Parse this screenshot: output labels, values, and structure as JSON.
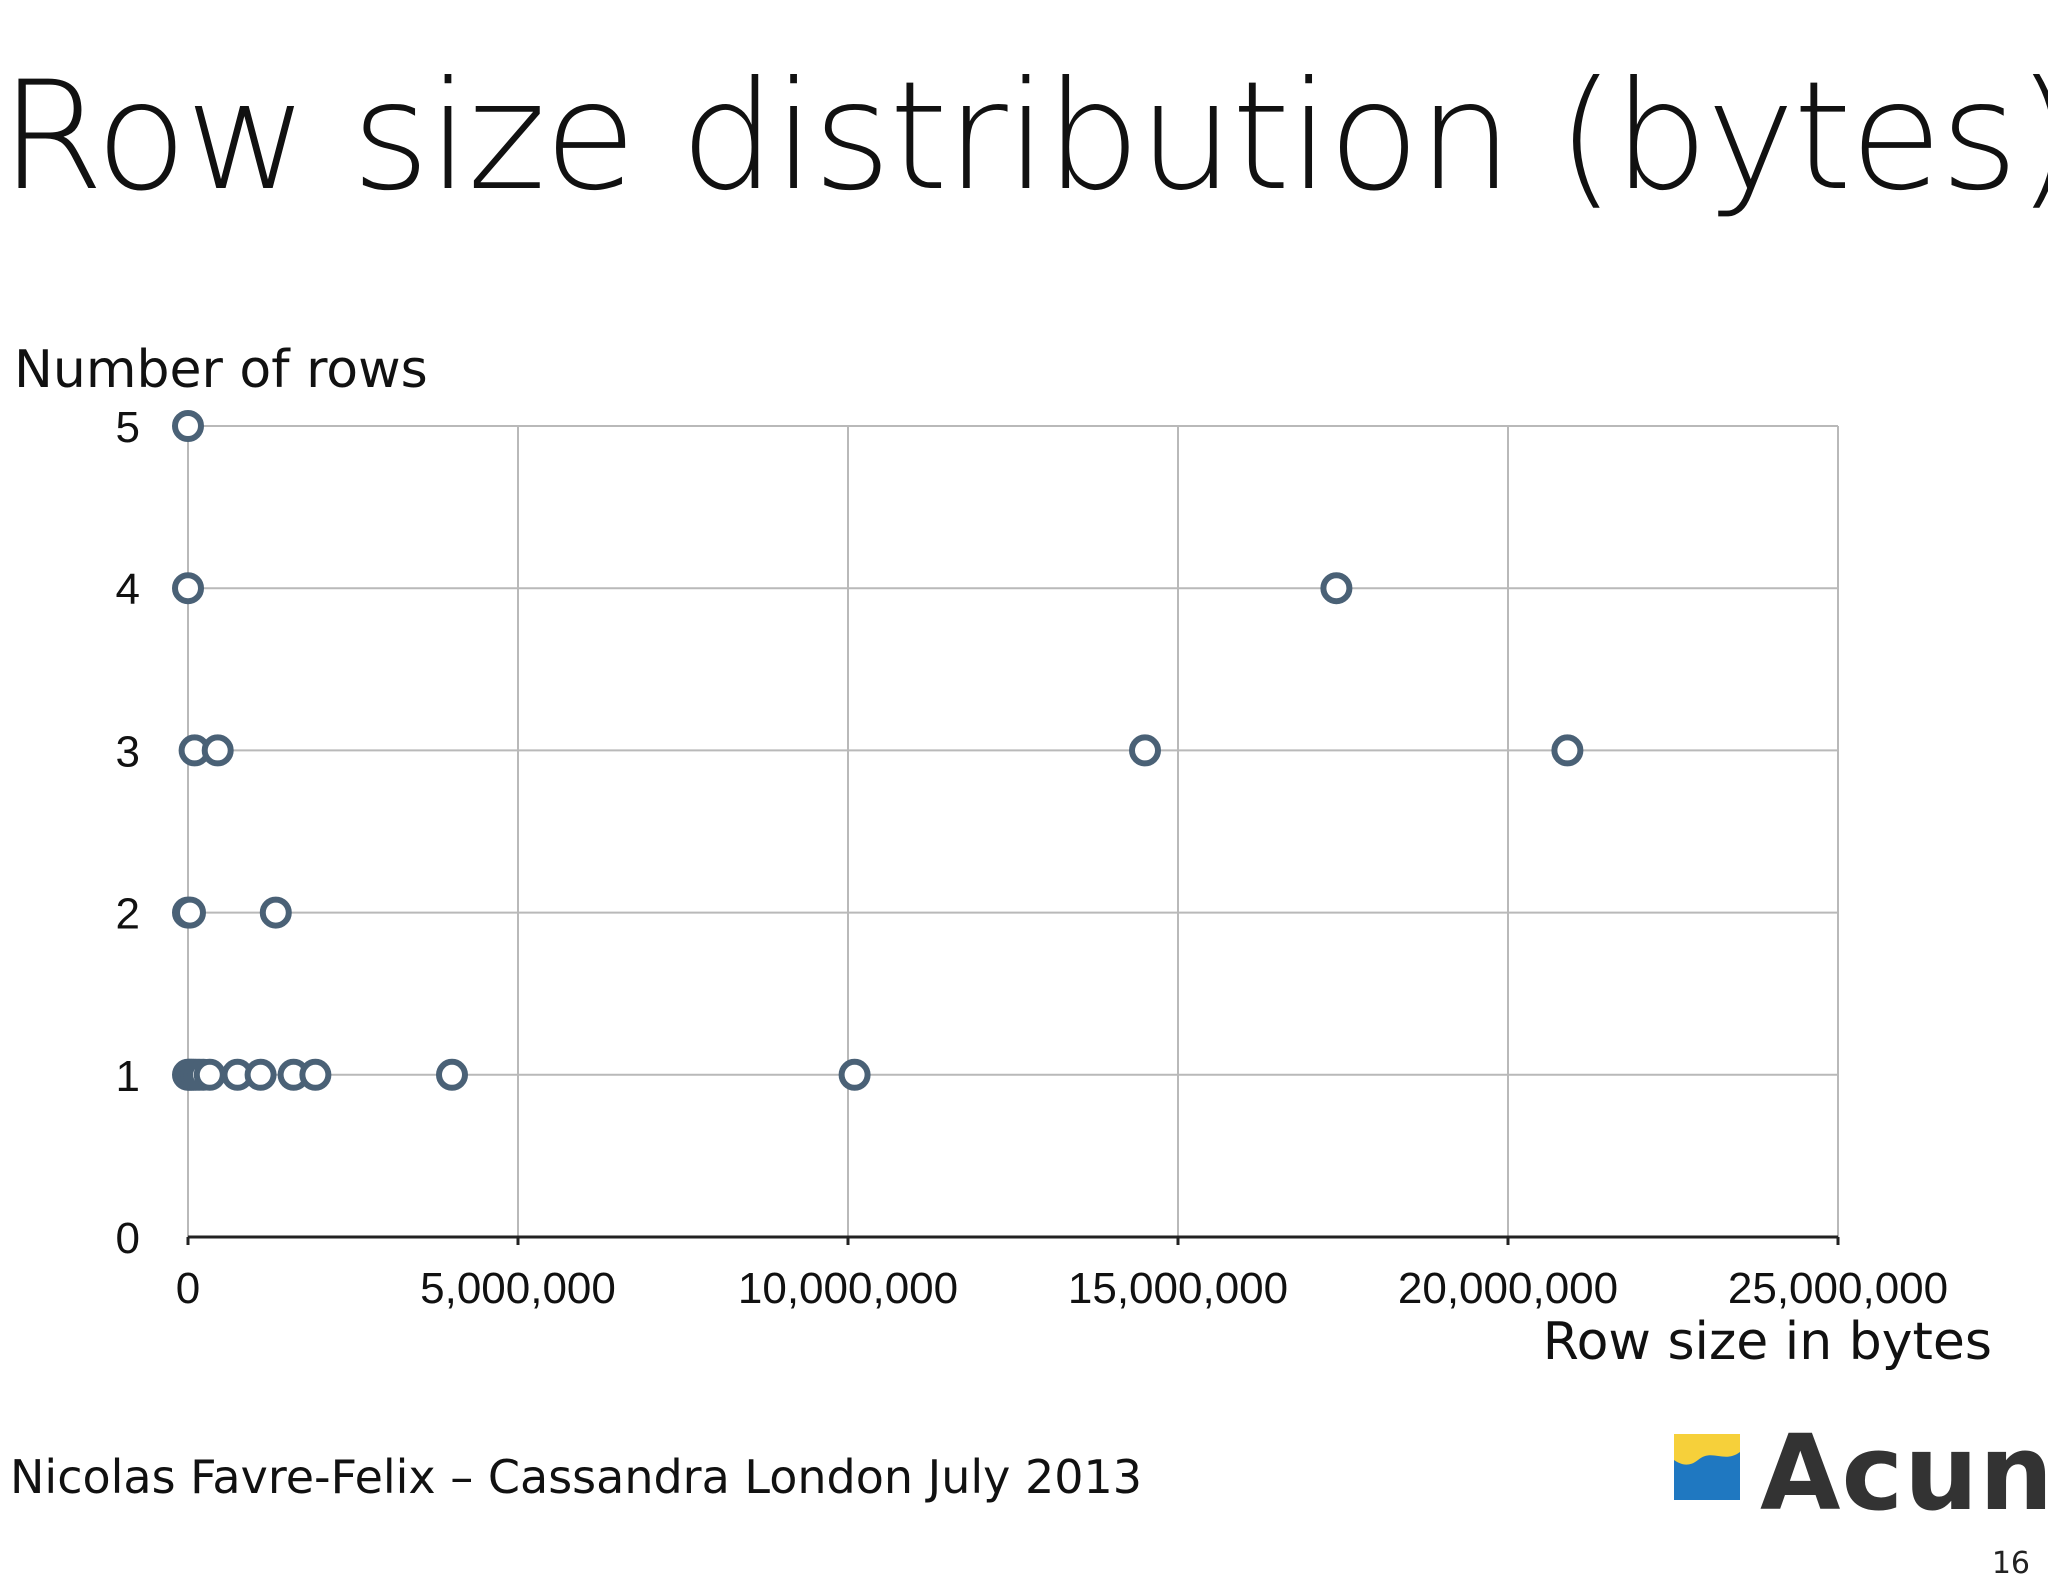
{
  "slide": {
    "title": "Row size distribution (bytes)",
    "footer": "Nicolas Favre-Felix – Cassandra London July 2013",
    "logo_text": "Acunu",
    "page_number": "16"
  },
  "chart_data": {
    "type": "scatter",
    "title": "Row size distribution (bytes)",
    "xlabel": "Row size in bytes",
    "ylabel": "Number of rows",
    "xlim": [
      0,
      25000000
    ],
    "ylim": [
      0,
      5
    ],
    "x_ticks": [
      0,
      5000000,
      10000000,
      15000000,
      20000000,
      25000000
    ],
    "x_tick_labels": [
      "0",
      "5,000,000",
      "10,000,000",
      "15,000,000",
      "20,000,000",
      "25,000,000"
    ],
    "y_ticks": [
      0,
      1,
      2,
      3,
      4,
      5
    ],
    "y_tick_labels": [
      "0",
      "1",
      "2",
      "3",
      "4",
      "5"
    ],
    "grid": true,
    "marker_fill": "#ffffff",
    "marker_edge": "#4a6176",
    "points": [
      {
        "x": 0,
        "y": 5
      },
      {
        "x": 0,
        "y": 4
      },
      {
        "x": 100000,
        "y": 3
      },
      {
        "x": 450000,
        "y": 3
      },
      {
        "x": 14500000,
        "y": 3
      },
      {
        "x": 17400000,
        "y": 4
      },
      {
        "x": 20900000,
        "y": 3
      },
      {
        "x": 0,
        "y": 2
      },
      {
        "x": 30000,
        "y": 2
      },
      {
        "x": 1330000,
        "y": 2
      },
      {
        "x": 0,
        "y": 1
      },
      {
        "x": 20000,
        "y": 1
      },
      {
        "x": 50000,
        "y": 1
      },
      {
        "x": 80000,
        "y": 1
      },
      {
        "x": 120000,
        "y": 1
      },
      {
        "x": 170000,
        "y": 1
      },
      {
        "x": 230000,
        "y": 1
      },
      {
        "x": 330000,
        "y": 1
      },
      {
        "x": 750000,
        "y": 1
      },
      {
        "x": 1100000,
        "y": 1
      },
      {
        "x": 1600000,
        "y": 1
      },
      {
        "x": 1930000,
        "y": 1
      },
      {
        "x": 4000000,
        "y": 1
      },
      {
        "x": 10100000,
        "y": 1
      }
    ]
  }
}
